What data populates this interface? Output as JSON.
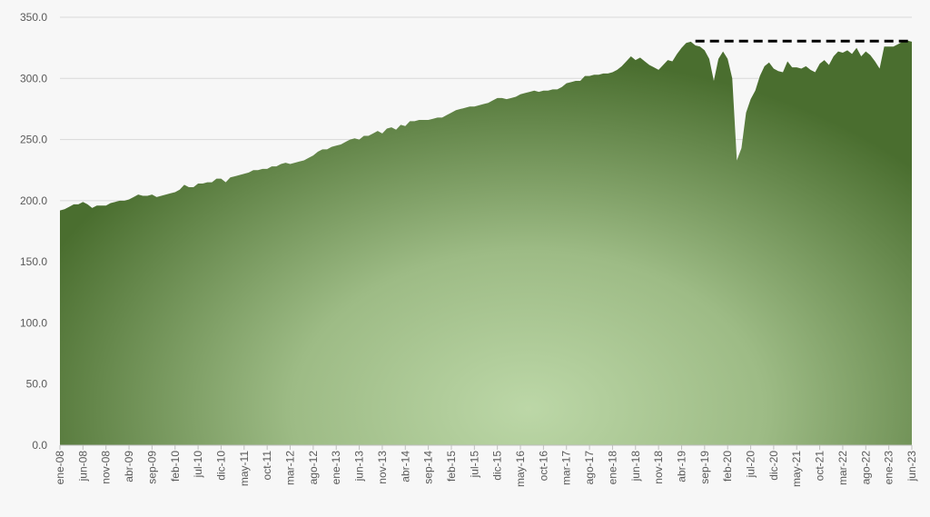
{
  "chart_data": {
    "type": "area",
    "categories": [
      "ene-08",
      null,
      null,
      null,
      null,
      "jun-08",
      null,
      null,
      null,
      null,
      "nov-08",
      null,
      null,
      null,
      null,
      "abr-09",
      null,
      null,
      null,
      null,
      "sep-09",
      null,
      null,
      null,
      null,
      "feb-10",
      null,
      null,
      null,
      null,
      "jul-10",
      null,
      null,
      null,
      null,
      "dic-10",
      null,
      null,
      null,
      null,
      "may-11",
      null,
      null,
      null,
      null,
      "oct-11",
      null,
      null,
      null,
      null,
      "mar-12",
      null,
      null,
      null,
      null,
      "ago-12",
      null,
      null,
      null,
      null,
      "ene-13",
      null,
      null,
      null,
      null,
      "jun-13",
      null,
      null,
      null,
      null,
      "nov-13",
      null,
      null,
      null,
      null,
      "abr-14",
      null,
      null,
      null,
      null,
      "sep-14",
      null,
      null,
      null,
      null,
      "feb-15",
      null,
      null,
      null,
      null,
      "jul-15",
      null,
      null,
      null,
      null,
      "dic-15",
      null,
      null,
      null,
      null,
      "may-16",
      null,
      null,
      null,
      null,
      "oct-16",
      null,
      null,
      null,
      null,
      "mar-17",
      null,
      null,
      null,
      null,
      "ago-17",
      null,
      null,
      null,
      null,
      "ene-18",
      null,
      null,
      null,
      null,
      "jun-18",
      null,
      null,
      null,
      null,
      "nov-18",
      null,
      null,
      null,
      null,
      "abr-19",
      null,
      null,
      null,
      null,
      "sep-19",
      null,
      null,
      null,
      null,
      "feb-20",
      null,
      null,
      null,
      null,
      "jul-20",
      null,
      null,
      null,
      null,
      "dic-20",
      null,
      null,
      null,
      null,
      "may-21",
      null,
      null,
      null,
      null,
      "oct-21",
      null,
      null,
      null,
      null,
      "mar-22",
      null,
      null,
      null,
      null,
      "ago-22",
      null,
      null,
      null,
      null,
      "ene-23",
      null,
      null,
      null,
      null,
      "jun-23"
    ],
    "values": [
      192,
      193,
      195,
      197,
      197,
      199,
      197,
      194,
      196,
      196,
      196,
      198,
      199,
      200,
      200,
      201,
      203,
      205,
      204,
      204,
      205,
      203,
      204,
      205,
      206,
      207,
      209,
      213,
      211,
      211,
      214,
      214,
      215,
      215,
      218,
      218,
      215,
      219,
      220,
      221,
      222,
      223,
      225,
      225,
      226,
      226,
      228,
      228,
      230,
      231,
      230,
      231,
      232,
      233,
      235,
      237,
      240,
      242,
      242,
      244,
      245,
      246,
      248,
      250,
      251,
      250,
      253,
      253,
      255,
      257,
      255,
      259,
      260,
      258,
      262,
      261,
      265,
      265,
      266,
      266,
      266,
      267,
      268,
      268,
      270,
      272,
      274,
      275,
      276,
      277,
      277,
      278,
      279,
      280,
      282,
      284,
      284,
      283,
      284,
      285,
      287,
      288,
      289,
      290,
      289,
      290,
      290,
      291,
      291,
      293,
      296,
      297,
      298,
      298,
      302,
      302,
      303,
      303,
      304,
      304,
      305,
      307,
      310,
      314,
      318,
      315,
      317,
      314,
      311,
      309,
      307,
      311,
      315,
      314,
      320,
      325,
      329,
      330,
      327,
      326,
      323,
      316,
      298,
      316,
      322,
      316,
      300,
      233,
      243,
      272,
      283,
      290,
      302,
      310,
      313,
      308,
      306,
      305,
      314,
      309,
      309,
      308,
      310,
      307,
      305,
      312,
      315,
      311,
      318,
      322,
      321,
      323,
      320,
      325,
      318,
      322,
      319,
      314,
      308,
      326,
      326,
      326,
      328,
      330,
      331,
      330
    ],
    "color": "#4a6e2f",
    "ylim": [
      0,
      350
    ],
    "yticks": [
      {
        "value": 0,
        "label": "0.0"
      },
      {
        "value": 50,
        "label": "50.0"
      },
      {
        "value": 100,
        "label": "100.0"
      },
      {
        "value": 150,
        "label": "150.0"
      },
      {
        "value": 200,
        "label": "200.0"
      },
      {
        "value": 250,
        "label": "250.0"
      },
      {
        "value": 300,
        "label": "300.0"
      },
      {
        "value": 350,
        "label": "350.0"
      }
    ],
    "grid": true,
    "reference_line": {
      "value": 330.5,
      "start_index": 138
    }
  }
}
